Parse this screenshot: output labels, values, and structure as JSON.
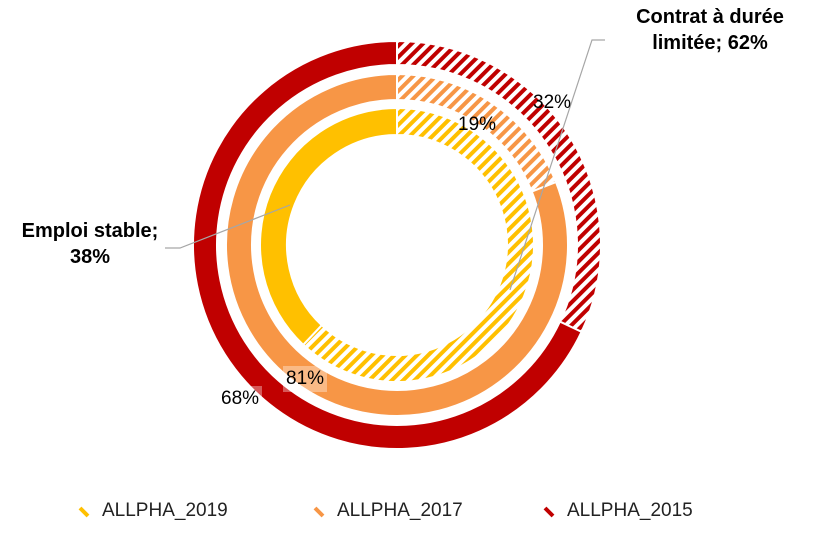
{
  "chart_data": {
    "type": "donut",
    "series": [
      {
        "name": "ALLPHA_2019",
        "color": "#FFC000",
        "values": [
          62,
          38
        ],
        "value_labels": [
          "Contrat à durée limitée; 62%",
          "Emploi stable; 38%"
        ]
      },
      {
        "name": "ALLPHA_2017",
        "color": "#F79646",
        "values": [
          19,
          81
        ],
        "value_labels": [
          "19%",
          "81%"
        ]
      },
      {
        "name": "ALLPHA_2015",
        "color": "#C00000",
        "values": [
          32,
          68
        ],
        "value_labels": [
          "32%",
          "68%"
        ]
      }
    ]
  }
}
